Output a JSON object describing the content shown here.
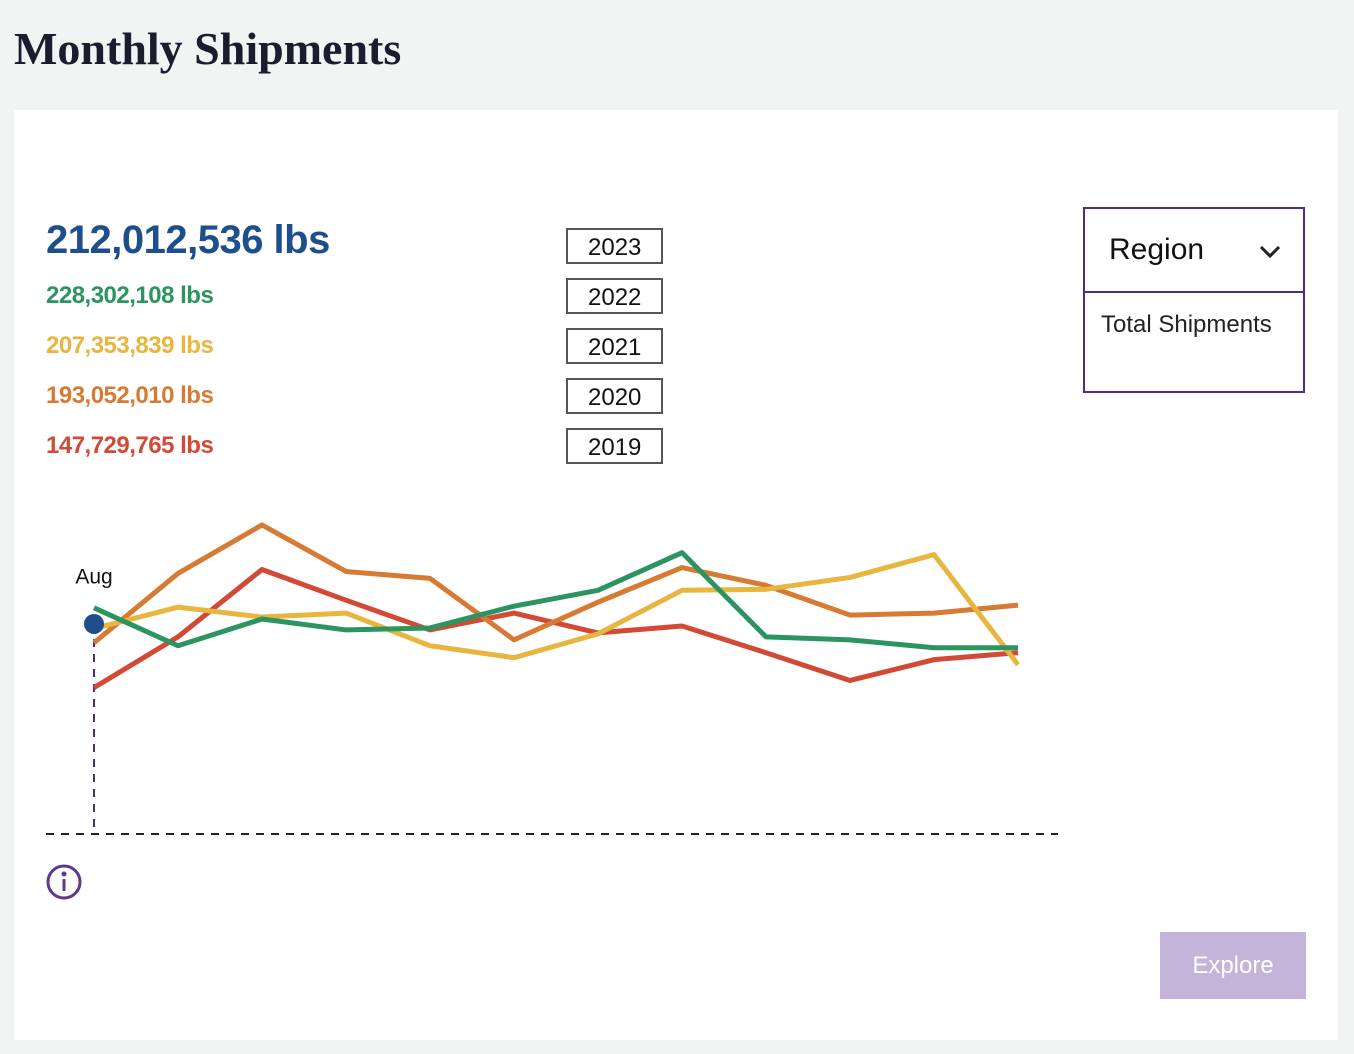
{
  "header": {
    "title": "Monthly Shipments"
  },
  "chart_data": {
    "type": "line",
    "categories": [
      "Aug",
      null,
      null,
      null,
      null,
      null,
      null,
      null,
      null,
      null,
      null,
      null
    ],
    "ylim": [
      0,
      320000000
    ],
    "series": [
      {
        "name": "2023",
        "color": "#1f4e8c",
        "values": [
          212012536,
          null,
          null,
          null,
          null,
          null,
          null,
          null,
          null,
          null,
          null,
          null
        ],
        "value_labels": [
          "212,012,536 lbs",
          null,
          null,
          null,
          null,
          null,
          null,
          null,
          null,
          null,
          null,
          null
        ]
      },
      {
        "name": "2022",
        "color": "#2a9560",
        "values": [
          228302108,
          190000000,
          217000000,
          206000000,
          208000000,
          230000000,
          246000000,
          284000000,
          199000000,
          196000000,
          188000000,
          188000000
        ],
        "value_labels": [
          "228,302,108 lbs",
          null,
          null,
          null,
          null,
          null,
          null,
          null,
          null,
          null,
          null,
          null
        ]
      },
      {
        "name": "2021",
        "color": "#e8b53e",
        "values": [
          207353839,
          229000000,
          219000000,
          223000000,
          190000000,
          178000000,
          202000000,
          246000000,
          247000000,
          259000000,
          282000000,
          171000000
        ],
        "value_labels": [
          "207,353,839 lbs",
          null,
          null,
          null,
          null,
          null,
          null,
          null,
          null,
          null,
          null,
          null
        ]
      },
      {
        "name": "2020",
        "color": "#d67a34",
        "values": [
          193052010,
          263000000,
          312000000,
          265000000,
          258000000,
          196000000,
          234000000,
          269000000,
          251000000,
          221000000,
          223000000,
          231000000
        ],
        "value_labels": [
          "193,052,010 lbs",
          null,
          null,
          null,
          null,
          null,
          null,
          null,
          null,
          null,
          null,
          null
        ]
      },
      {
        "name": "2019",
        "color": "#d24a36",
        "values": [
          147729765,
          199000000,
          267000000,
          236000000,
          206000000,
          223000000,
          203000000,
          210000000,
          183000000,
          155000000,
          176000000,
          183000000
        ],
        "value_labels": [
          "147,729,765 lbs",
          null,
          null,
          null,
          null,
          null,
          null,
          null,
          null,
          null,
          null,
          null
        ]
      }
    ]
  },
  "dropdown": {
    "label": "Region",
    "option": "Total Shipments"
  },
  "button": {
    "label": "Explore"
  }
}
